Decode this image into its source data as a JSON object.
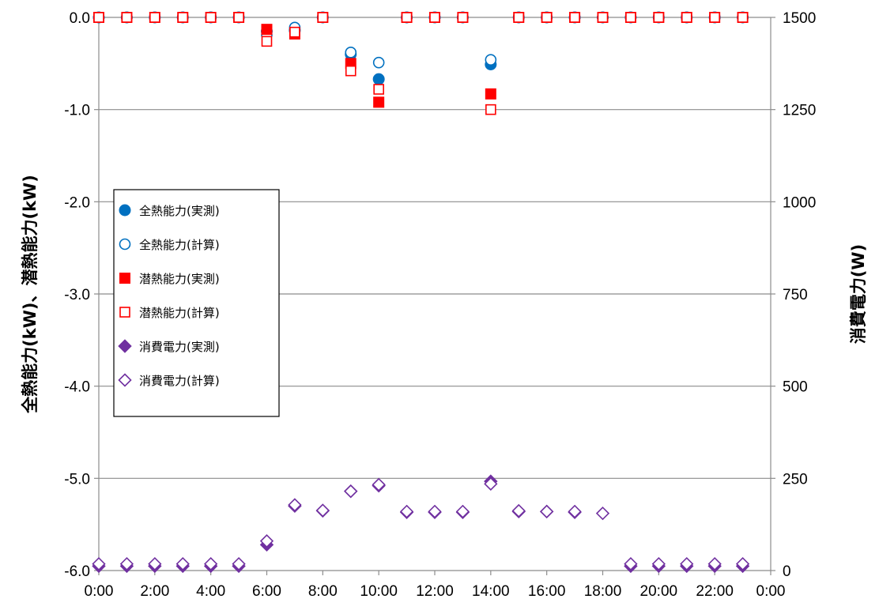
{
  "chart_data": {
    "type": "scatter",
    "title": "",
    "xlabel": "",
    "ylabel": "全熱能力(kW)、潜熱能力(kW)",
    "y2label": "消費電力(W)",
    "xlim": [
      0,
      24
    ],
    "ylim": [
      -6.0,
      0.0
    ],
    "y2lim": [
      0,
      1500
    ],
    "grid": "horizontal",
    "legend_position": "left-middle",
    "x_ticks": [
      "0:00",
      "2:00",
      "4:00",
      "6:00",
      "8:00",
      "10:00",
      "12:00",
      "14:00",
      "16:00",
      "18:00",
      "20:00",
      "22:00",
      "0:00"
    ],
    "y_ticks": [
      "0.0",
      "-1.0",
      "-2.0",
      "-3.0",
      "-4.0",
      "-5.0",
      "-6.0"
    ],
    "y2_ticks": [
      "1500",
      "1250",
      "1000",
      "750",
      "500",
      "250",
      "0"
    ],
    "x": [
      0,
      1,
      2,
      3,
      4,
      5,
      6,
      7,
      8,
      9,
      10,
      11,
      12,
      13,
      14,
      15,
      16,
      17,
      18,
      19,
      20,
      21,
      22,
      23
    ],
    "series": [
      {
        "name": "全熱能力(実測)",
        "axis": "left",
        "marker": "circle-filled",
        "color": "#0070c0",
        "values": [
          0,
          0,
          0,
          0,
          0,
          0,
          -0.15,
          -0.14,
          0,
          -0.4,
          -0.67,
          0,
          0,
          0,
          -0.51,
          0,
          0,
          0,
          0,
          0,
          0,
          0,
          0,
          0
        ]
      },
      {
        "name": "全熱能力(計算)",
        "axis": "left",
        "marker": "circle-open",
        "color": "#0070c0",
        "values": [
          0,
          0,
          0,
          0,
          0,
          0,
          -0.19,
          -0.11,
          0,
          -0.38,
          -0.49,
          0,
          0,
          0,
          -0.46,
          0,
          0,
          0,
          0,
          0,
          0,
          0,
          0,
          0
        ]
      },
      {
        "name": "潜熱能力(実測)",
        "axis": "left",
        "marker": "square-filled",
        "color": "#ff0000",
        "values": [
          0,
          0,
          0,
          0,
          0,
          0,
          -0.13,
          -0.18,
          0,
          -0.5,
          -0.92,
          0,
          0,
          0,
          -0.83,
          0,
          0,
          0,
          0,
          0,
          0,
          0,
          0,
          0
        ]
      },
      {
        "name": "潜熱能力(計算)",
        "axis": "left",
        "marker": "square-open",
        "color": "#ff0000",
        "values": [
          0,
          0,
          0,
          0,
          0,
          0,
          -0.26,
          -0.16,
          0,
          -0.58,
          -0.78,
          0,
          0,
          0,
          -1.0,
          0,
          0,
          0,
          0,
          0,
          0,
          0,
          0,
          0
        ]
      },
      {
        "name": "消費電力(実測)",
        "axis": "right",
        "marker": "diamond-filled",
        "color": "#7030a0",
        "values": [
          12,
          12,
          12,
          12,
          12,
          12,
          70,
          175,
          162,
          215,
          230,
          158,
          158,
          158,
          242,
          160,
          160,
          158,
          null,
          12,
          12,
          12,
          12,
          12
        ]
      },
      {
        "name": "消費電力(計算)",
        "axis": "right",
        "marker": "diamond-open",
        "color": "#7030a0",
        "values": [
          18,
          18,
          18,
          18,
          18,
          18,
          80,
          178,
          163,
          215,
          233,
          160,
          160,
          160,
          235,
          162,
          160,
          160,
          155,
          18,
          18,
          18,
          18,
          18
        ]
      }
    ]
  }
}
